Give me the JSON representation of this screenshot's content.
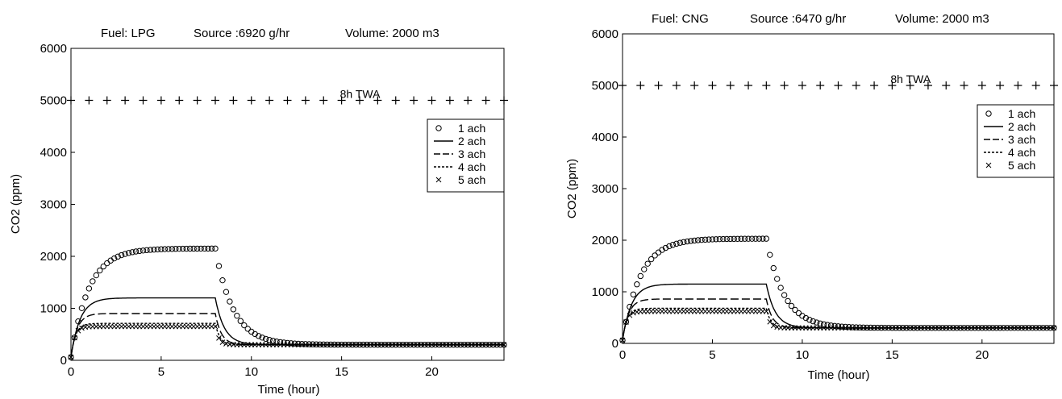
{
  "chart_data": [
    {
      "type": "line",
      "title_parts": {
        "fuel": "Fuel: LPG",
        "source": "Source :6920 g/hr",
        "volume": "Volume: 2000 m3"
      },
      "xlabel": "Time (hour)",
      "ylabel": "CO2 (ppm)",
      "xlim": [
        0,
        24
      ],
      "ylim": [
        0,
        6000
      ],
      "xticks": [
        0,
        5,
        10,
        15,
        20
      ],
      "yticks": [
        0,
        1000,
        2000,
        3000,
        4000,
        5000,
        6000
      ],
      "grid": false,
      "legend_position": "right",
      "annotation": {
        "text": "8h TWA",
        "x": 15,
        "y": 5000
      },
      "twa_line": {
        "value": 5000,
        "marker": "+"
      },
      "emission_end_hour": 8,
      "background_ppm": 300,
      "series": [
        {
          "name": "1 ach",
          "style": "circle",
          "plateau": 2150
        },
        {
          "name": "2 ach",
          "style": "solid",
          "plateau": 1200
        },
        {
          "name": "3 ach",
          "style": "dashed",
          "plateau": 900
        },
        {
          "name": "4 ach",
          "style": "dotted",
          "plateau": 710
        },
        {
          "name": "5 ach",
          "style": "cross",
          "plateau": 650
        }
      ]
    },
    {
      "type": "line",
      "title_parts": {
        "fuel": "Fuel: CNG",
        "source": "Source :6470 g/hr",
        "volume": "Volume: 2000 m3"
      },
      "xlabel": "Time (hour)",
      "ylabel": "CO2 (ppm)",
      "xlim": [
        0,
        24
      ],
      "ylim": [
        0,
        6000
      ],
      "xticks": [
        0,
        5,
        10,
        15,
        20
      ],
      "yticks": [
        0,
        1000,
        2000,
        3000,
        4000,
        5000,
        6000
      ],
      "grid": false,
      "legend_position": "right",
      "annotation": {
        "text": "8h TWA",
        "x": 15,
        "y": 5000
      },
      "twa_line": {
        "value": 5000,
        "marker": "+"
      },
      "emission_end_hour": 8,
      "background_ppm": 300,
      "series": [
        {
          "name": "1 ach",
          "style": "circle",
          "plateau": 2030
        },
        {
          "name": "2 ach",
          "style": "solid",
          "plateau": 1150
        },
        {
          "name": "3 ach",
          "style": "dashed",
          "plateau": 860
        },
        {
          "name": "4 ach",
          "style": "dotted",
          "plateau": 680
        },
        {
          "name": "5 ach",
          "style": "cross",
          "plateau": 620
        }
      ]
    }
  ]
}
